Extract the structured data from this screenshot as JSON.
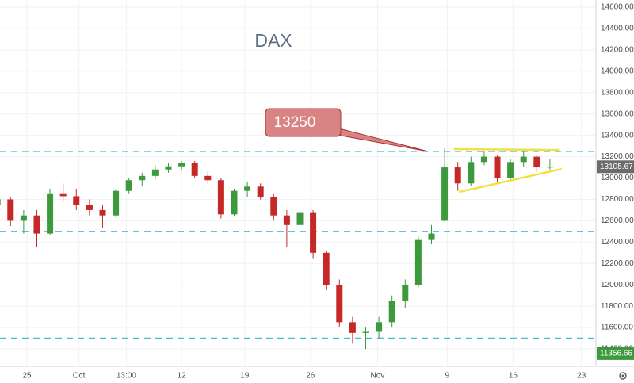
{
  "chart_data": {
    "type": "candlestick",
    "title": "DAX",
    "x": [
      1,
      2,
      3,
      4,
      5,
      6,
      7,
      8,
      9,
      10,
      11,
      12,
      13,
      14,
      15,
      16,
      17,
      18,
      19,
      20,
      21,
      22,
      23,
      24,
      25,
      26,
      27,
      28,
      29,
      30,
      31,
      32,
      33,
      34,
      35,
      36,
      37,
      38,
      39,
      40,
      41,
      42,
      43
    ],
    "open": [
      12750,
      12800,
      12600,
      12650,
      12480,
      12850,
      12830,
      12750,
      12700,
      12650,
      12880,
      12980,
      13020,
      13080,
      13110,
      13140,
      13020,
      12980,
      12660,
      12880,
      12920,
      12820,
      12650,
      12560,
      12680,
      12300,
      12000,
      11650,
      11550,
      11560,
      11650,
      11850,
      12000,
      12420,
      12600,
      13100,
      12950,
      13150,
      13200,
      13000,
      13150,
      13200,
      13100
    ],
    "high": [
      12850,
      12820,
      12700,
      12700,
      12900,
      12950,
      12900,
      12800,
      12750,
      12900,
      13000,
      13050,
      13120,
      13140,
      13160,
      13160,
      13060,
      13000,
      12900,
      12960,
      12950,
      12850,
      12700,
      12720,
      12700,
      12320,
      12050,
      11700,
      11600,
      11700,
      11900,
      12050,
      12450,
      12560,
      13280,
      13150,
      13200,
      13250,
      13210,
      13180,
      13260,
      13220,
      13180
    ],
    "low": [
      12700,
      12550,
      12480,
      12350,
      12470,
      12780,
      12700,
      12650,
      12530,
      12630,
      12850,
      12920,
      12990,
      13050,
      13080,
      13000,
      12950,
      12620,
      12640,
      12820,
      12800,
      12600,
      12350,
      12540,
      12250,
      11950,
      11600,
      11450,
      11400,
      11500,
      11600,
      11780,
      11980,
      12380,
      12590,
      12880,
      12930,
      13120,
      12950,
      12980,
      13100,
      13060,
      13080
    ],
    "close": [
      12800,
      12600,
      12650,
      12480,
      12850,
      12830,
      12750,
      12700,
      12650,
      12880,
      12980,
      13020,
      13080,
      13110,
      13140,
      13020,
      12980,
      12660,
      12880,
      12920,
      12820,
      12650,
      12560,
      12680,
      12300,
      12000,
      11650,
      11550,
      11560,
      11650,
      11850,
      12000,
      12420,
      12480,
      13100,
      12950,
      13150,
      13200,
      13000,
      13150,
      13200,
      13100,
      13105.67
    ],
    "up_color": "#3c9a3c",
    "down_color": "#c62828",
    "xlim": [
      1.2,
      46.5
    ],
    "ylim": [
      11237,
      14667
    ],
    "xticks": [
      {
        "value": 3.25,
        "label": "25"
      },
      {
        "value": 7.2,
        "label": "Oct"
      },
      {
        "value": 10.8,
        "label": "13:00"
      },
      {
        "value": 15,
        "label": "12"
      },
      {
        "value": 19.8,
        "label": "19"
      },
      {
        "value": 24.8,
        "label": "26"
      },
      {
        "value": 29.9,
        "label": "Nov"
      },
      {
        "value": 35.2,
        "label": "9"
      },
      {
        "value": 40.2,
        "label": "16"
      },
      {
        "value": 45.4,
        "label": "23"
      }
    ],
    "yticks": [
      {
        "value": 11400,
        "label": "11400.00"
      },
      {
        "value": 11600,
        "label": "11600.00"
      },
      {
        "value": 11800,
        "label": "11800.00"
      },
      {
        "value": 12000,
        "label": "12000.00"
      },
      {
        "value": 12200,
        "label": "12200.00"
      },
      {
        "value": 12400,
        "label": "12400.00"
      },
      {
        "value": 12600,
        "label": "12600.00"
      },
      {
        "value": 12800,
        "label": "12800.00"
      },
      {
        "value": 13000,
        "label": "13000.00"
      },
      {
        "value": 13200,
        "label": "13200.00"
      },
      {
        "value": 13400,
        "label": "13400.00"
      },
      {
        "value": 13600,
        "label": "13600.00"
      },
      {
        "value": 13800,
        "label": "13800.00"
      },
      {
        "value": 14000,
        "label": "14000.00"
      },
      {
        "value": 14200,
        "label": "14200.00"
      },
      {
        "value": 14400,
        "label": "14400.00"
      },
      {
        "value": 14600,
        "label": "14600.00"
      }
    ],
    "grid": true,
    "levels": [
      13250,
      12500,
      11500
    ],
    "level_color": "#45bfd0",
    "trendlines": [
      {
        "x": [
          35.7,
          43.7
        ],
        "y": [
          13271,
          13263
        ]
      },
      {
        "x": [
          36.1,
          43.9
        ],
        "y": [
          12870,
          13085
        ]
      }
    ],
    "trendline_color": "#f2e040",
    "price_labels": [
      {
        "value": 13105.67,
        "color": "#6b6b6b"
      },
      {
        "value": 11356.66,
        "color": "#3c9a3c"
      }
    ]
  }
}
